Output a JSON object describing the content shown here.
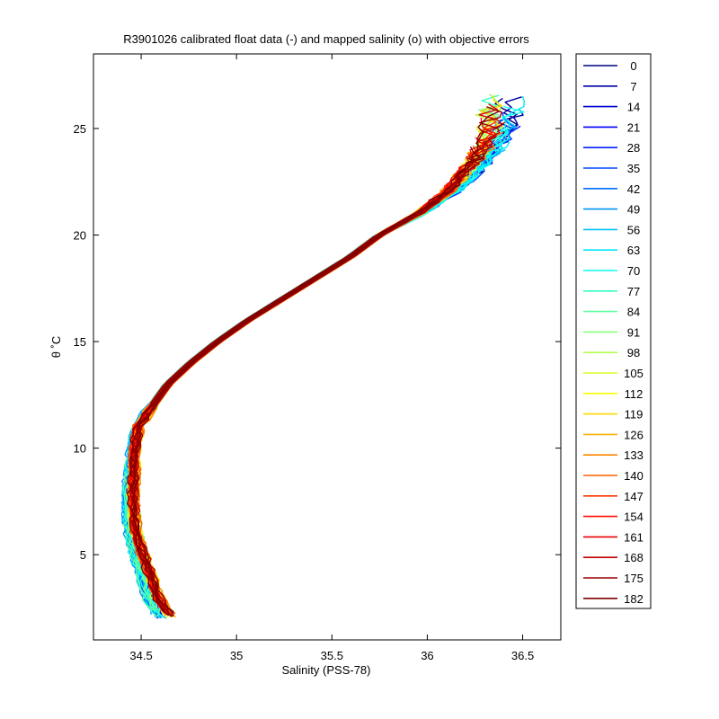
{
  "chart_data": {
    "type": "line",
    "title": "R3901026 calibrated float data (-) and mapped salinity (o) with objective errors",
    "xlabel": "Salinity (PSS-78)",
    "ylabel": "θ ˚C",
    "xlim": [
      34.25,
      36.7
    ],
    "ylim": [
      1.0,
      28.5
    ],
    "xticks": [
      34.5,
      35,
      35.5,
      36,
      36.5
    ],
    "xtick_labels": [
      "34.5",
      "35",
      "35.5",
      "36",
      "36.5"
    ],
    "yticks": [
      5,
      10,
      15,
      20,
      25
    ],
    "ytick_labels": [
      "5",
      "10",
      "15",
      "20",
      "25"
    ],
    "grid": false,
    "legend_position": "outside-right",
    "colormap": "jet",
    "profile_min": 0,
    "profile_max": 182,
    "legend": [
      "0",
      "7",
      "14",
      "21",
      "28",
      "35",
      "42",
      "49",
      "56",
      "63",
      "70",
      "77",
      "84",
      "91",
      "98",
      "105",
      "112",
      "119",
      "126",
      "133",
      "140",
      "147",
      "154",
      "161",
      "168",
      "175",
      "182"
    ],
    "ts_curve": {
      "theta": [
        2.0,
        3.0,
        4.0,
        5.0,
        6.0,
        7.0,
        8.0,
        9.0,
        10.0,
        11.0,
        12.0,
        13.0,
        14.0,
        15.0,
        16.0,
        17.0,
        18.0,
        19.0,
        20.0,
        21.0,
        22.0,
        23.0,
        24.0,
        25.0
      ],
      "salinity": [
        34.62,
        34.55,
        34.52,
        34.48,
        34.45,
        34.44,
        34.44,
        34.45,
        34.46,
        34.48,
        34.56,
        34.64,
        34.76,
        34.9,
        35.06,
        35.24,
        35.42,
        35.6,
        35.75,
        35.95,
        36.1,
        36.2,
        36.28,
        36.33
      ]
    },
    "series": [
      {
        "profile": 0,
        "color": "#000080"
      },
      {
        "profile": 7,
        "color": "#0000a8"
      },
      {
        "profile": 14,
        "color": "#0000d0"
      },
      {
        "profile": 21,
        "color": "#0000f8"
      },
      {
        "profile": 28,
        "color": "#0020ff"
      },
      {
        "profile": 35,
        "color": "#0048ff"
      },
      {
        "profile": 42,
        "color": "#0070ff"
      },
      {
        "profile": 49,
        "color": "#0098ff"
      },
      {
        "profile": 56,
        "color": "#00c0ff"
      },
      {
        "profile": 63,
        "color": "#00e8ff"
      },
      {
        "profile": 70,
        "color": "#10ffef"
      },
      {
        "profile": 77,
        "color": "#38ffc7"
      },
      {
        "profile": 84,
        "color": "#60ff9f"
      },
      {
        "profile": 91,
        "color": "#88ff77"
      },
      {
        "profile": 98,
        "color": "#b0ff4f"
      },
      {
        "profile": 105,
        "color": "#d8ff27"
      },
      {
        "profile": 112,
        "color": "#ffff00"
      },
      {
        "profile": 119,
        "color": "#ffd800"
      },
      {
        "profile": 126,
        "color": "#ffb000"
      },
      {
        "profile": 133,
        "color": "#ff8800"
      },
      {
        "profile": 140,
        "color": "#ff6000"
      },
      {
        "profile": 147,
        "color": "#ff3800"
      },
      {
        "profile": 154,
        "color": "#ff1000"
      },
      {
        "profile": 161,
        "color": "#e80000"
      },
      {
        "profile": 168,
        "color": "#c00000"
      },
      {
        "profile": 175,
        "color": "#980000"
      },
      {
        "profile": 182,
        "color": "#800000"
      }
    ]
  }
}
